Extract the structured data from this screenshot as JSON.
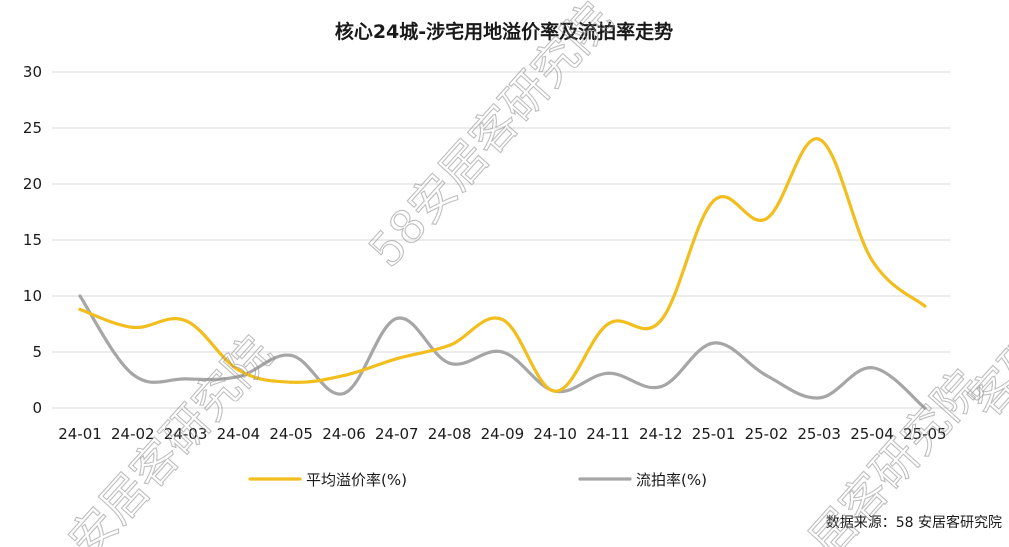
{
  "chart_data": {
    "type": "line",
    "title": "核心24城-涉宅用地溢价率及流拍率走势",
    "categories": [
      "24-01",
      "24-02",
      "24-03",
      "24-04",
      "24-05",
      "24-06",
      "24-07",
      "24-08",
      "24-09",
      "24-10",
      "24-11",
      "24-12",
      "25-01",
      "25-02",
      "25-03",
      "25-04",
      "25-05"
    ],
    "series": [
      {
        "name": "平均溢价率(%)",
        "color": "#F2BE1E",
        "values": [
          8.8,
          7.2,
          7.8,
          3.4,
          2.3,
          2.9,
          4.4,
          5.6,
          7.9,
          1.5,
          7.5,
          7.8,
          18.5,
          16.9,
          24.0,
          13.2,
          9.1
        ]
      },
      {
        "name": "流拍率(%)",
        "color": "#A6A6A6",
        "values": [
          10.0,
          3.0,
          2.6,
          2.8,
          4.7,
          1.3,
          8.0,
          4.0,
          5.0,
          1.5,
          3.1,
          1.9,
          5.8,
          2.9,
          0.9,
          3.6,
          0.0
        ]
      }
    ],
    "ylim": [
      0,
      30
    ],
    "yticks": [
      0,
      5,
      10,
      15,
      20,
      25,
      30
    ],
    "grid": true,
    "legend_position": "bottom",
    "source_note": "数据来源：58 安居客研究院",
    "watermark": [
      "58安居客研究院",
      "安居客研究院",
      "居客研究院",
      "客研究"
    ]
  }
}
